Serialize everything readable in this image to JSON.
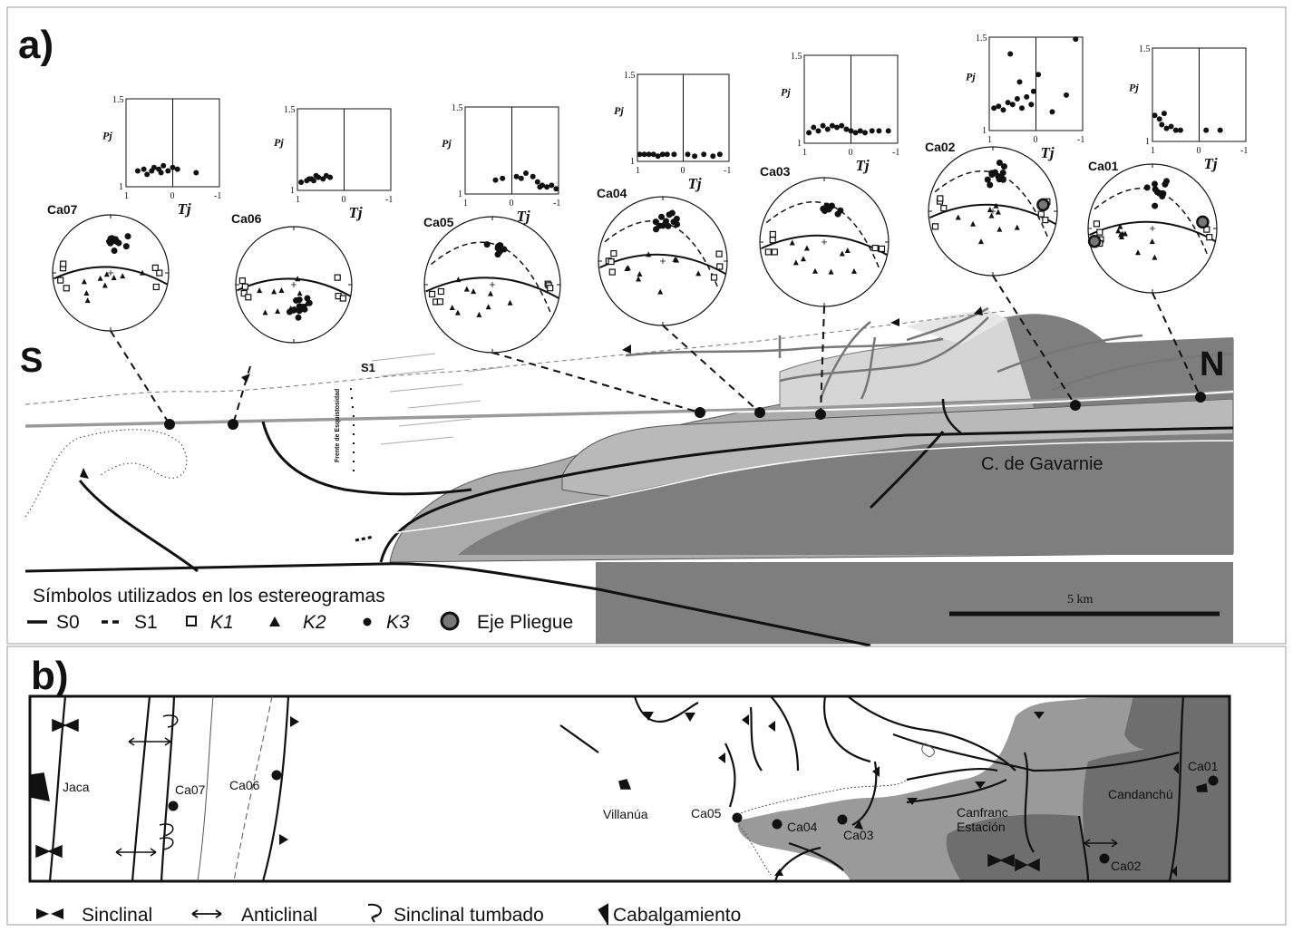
{
  "panel_a": {
    "label": "a)",
    "south": "S",
    "north": "N",
    "s1_label": "S1",
    "frente_label": "Frente de Esquistosidad",
    "gavarnie_label": "C. de Gavarnie",
    "scale_label": "5 km",
    "plot_axis": {
      "y_top": "1.5",
      "y_bottom": "1",
      "x_left": "1",
      "x_mid": "0",
      "x_right": "-1",
      "ylabel": "Pj",
      "xlabel": "Tj"
    },
    "sites": [
      {
        "name": "Ca07",
        "pj_tj": [
          [
            0.75,
            1.09
          ],
          [
            0.62,
            1.1
          ],
          [
            0.55,
            1.07
          ],
          [
            0.4,
            1.11
          ],
          [
            0.3,
            1.1
          ],
          [
            0.2,
            1.12
          ],
          [
            0.1,
            1.09
          ],
          [
            0.0,
            1.11
          ],
          [
            -0.1,
            1.1
          ],
          [
            0.25,
            1.08
          ],
          [
            -0.5,
            1.08
          ],
          [
            0.45,
            1.09
          ]
        ]
      },
      {
        "name": "Ca06",
        "pj_tj": [
          [
            0.92,
            1.05
          ],
          [
            0.8,
            1.06
          ],
          [
            0.7,
            1.07
          ],
          [
            0.65,
            1.06
          ],
          [
            0.55,
            1.08
          ],
          [
            0.45,
            1.07
          ],
          [
            0.38,
            1.09
          ],
          [
            0.3,
            1.08
          ],
          [
            0.75,
            1.07
          ],
          [
            0.6,
            1.09
          ]
        ]
      },
      {
        "name": "Ca05",
        "pj_tj": [
          [
            -0.1,
            1.1
          ],
          [
            -0.3,
            1.12
          ],
          [
            -0.45,
            1.1
          ],
          [
            -0.55,
            1.07
          ],
          [
            -0.65,
            1.05
          ],
          [
            -0.75,
            1.04
          ],
          [
            -0.85,
            1.05
          ],
          [
            -0.95,
            1.03
          ],
          [
            -0.6,
            1.04
          ],
          [
            0.35,
            1.08
          ],
          [
            0.2,
            1.09
          ],
          [
            -0.2,
            1.09
          ]
        ]
      },
      {
        "name": "Ca04",
        "pj_tj": [
          [
            0.95,
            1.04
          ],
          [
            0.85,
            1.04
          ],
          [
            0.75,
            1.04
          ],
          [
            0.65,
            1.04
          ],
          [
            0.55,
            1.03
          ],
          [
            0.45,
            1.04
          ],
          [
            0.35,
            1.04
          ],
          [
            0.2,
            1.04
          ],
          [
            -0.1,
            1.04
          ],
          [
            -0.25,
            1.03
          ],
          [
            -0.45,
            1.04
          ],
          [
            -0.65,
            1.03
          ],
          [
            -0.8,
            1.04
          ]
        ]
      },
      {
        "name": "Ca03",
        "pj_tj": [
          [
            0.9,
            1.06
          ],
          [
            0.8,
            1.09
          ],
          [
            0.7,
            1.07
          ],
          [
            0.6,
            1.1
          ],
          [
            0.5,
            1.08
          ],
          [
            0.4,
            1.1
          ],
          [
            0.3,
            1.09
          ],
          [
            0.2,
            1.1
          ],
          [
            0.1,
            1.08
          ],
          [
            0.0,
            1.07
          ],
          [
            -0.1,
            1.06
          ],
          [
            -0.2,
            1.07
          ],
          [
            -0.3,
            1.06
          ],
          [
            -0.45,
            1.07
          ],
          [
            -0.6,
            1.07
          ],
          [
            -0.8,
            1.07
          ]
        ]
      },
      {
        "name": "Ca02",
        "pj_tj": [
          [
            0.9,
            1.12
          ],
          [
            0.8,
            1.13
          ],
          [
            0.7,
            1.11
          ],
          [
            0.6,
            1.15
          ],
          [
            0.5,
            1.14
          ],
          [
            0.4,
            1.17
          ],
          [
            0.3,
            1.12
          ],
          [
            0.2,
            1.18
          ],
          [
            0.1,
            1.14
          ],
          [
            -0.05,
            1.3
          ],
          [
            0.05,
            1.21
          ],
          [
            0.35,
            1.26
          ],
          [
            0.55,
            1.41
          ],
          [
            -0.35,
            1.1
          ],
          [
            -0.65,
            1.19
          ],
          [
            -0.85,
            1.49
          ]
        ]
      },
      {
        "name": "Ca01",
        "pj_tj": [
          [
            0.95,
            1.14
          ],
          [
            0.85,
            1.12
          ],
          [
            0.8,
            1.09
          ],
          [
            0.75,
            1.15
          ],
          [
            0.7,
            1.07
          ],
          [
            0.6,
            1.08
          ],
          [
            0.5,
            1.06
          ],
          [
            0.4,
            1.06
          ],
          [
            -0.15,
            1.06
          ],
          [
            -0.45,
            1.06
          ]
        ]
      }
    ]
  },
  "legend_a": {
    "title": "Símbolos utilizados en los estereogramas",
    "s0": "S0",
    "s1": "S1",
    "k1": "K1",
    "k2": "K2",
    "k3": "K3",
    "axis": "Eje Pliegue"
  },
  "panel_b": {
    "label": "b)",
    "towns": {
      "jaca": "Jaca",
      "villanua": "Villanúa",
      "canfranc1": "Canfranc",
      "canfranc2": "Estación",
      "candanchu": "Candanchú"
    },
    "sites": [
      "Ca07",
      "Ca06",
      "Ca05",
      "Ca04",
      "Ca03",
      "Ca02",
      "Ca01"
    ]
  },
  "legend_b": {
    "sinclinal": "Sinclinal",
    "anticlinal": "Anticlinal",
    "tumbado": "Sinclinal tumbado",
    "cabalgamiento": "Cabalgamiento"
  }
}
